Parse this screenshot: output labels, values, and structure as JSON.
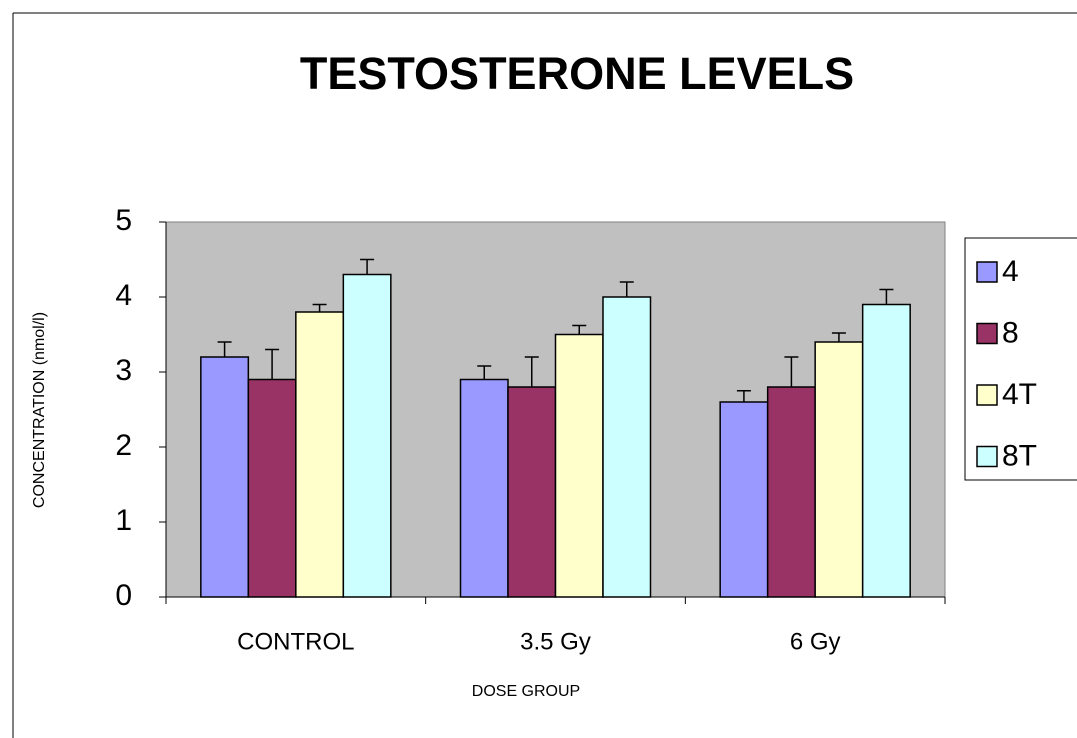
{
  "chart_data": {
    "type": "bar",
    "title": "TESTOSTERONE LEVELS",
    "x_label": "DOSE GROUP",
    "y_label": "CONCENTRATION (nmol/l)",
    "categories": [
      "CONTROL",
      "3.5 Gy",
      "6 Gy"
    ],
    "series": [
      {
        "name": "4",
        "color": "#9999ff",
        "values": [
          3.2,
          2.9,
          2.6
        ],
        "errors": [
          0.2,
          0.18,
          0.15
        ]
      },
      {
        "name": "8",
        "color": "#993366",
        "values": [
          2.9,
          2.8,
          2.8
        ],
        "errors": [
          0.4,
          0.4,
          0.4
        ]
      },
      {
        "name": "4T",
        "color": "#ffffcc",
        "values": [
          3.8,
          3.5,
          3.4
        ],
        "errors": [
          0.1,
          0.12,
          0.12
        ]
      },
      {
        "name": "8T",
        "color": "#ccffff",
        "values": [
          4.3,
          4.0,
          3.9
        ],
        "errors": [
          0.2,
          0.2,
          0.2
        ]
      }
    ],
    "ylim": [
      0,
      5
    ],
    "yticks": [
      0,
      1,
      2,
      3,
      4,
      5
    ],
    "grid": false,
    "legend": "right",
    "plot_background": "#c0c0c0"
  }
}
